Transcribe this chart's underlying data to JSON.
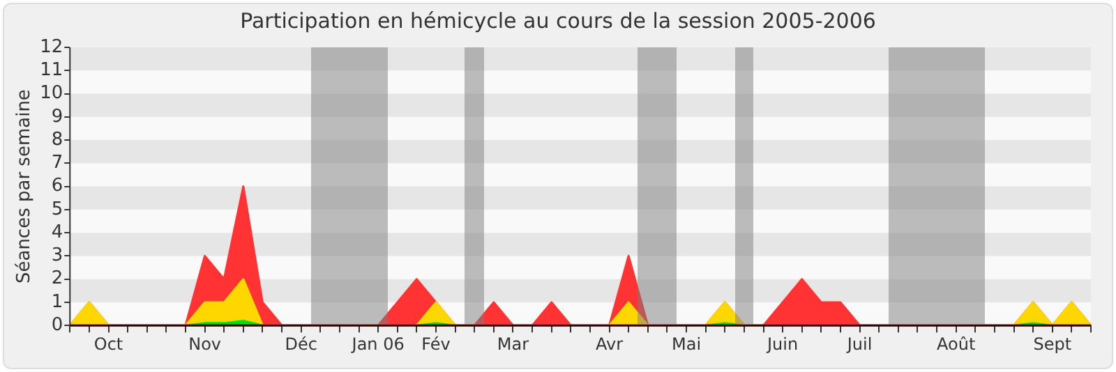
{
  "chart_data": {
    "type": "area",
    "title": "Participation en hémicycle au cours de la session 2005-2006",
    "ylabel": "Séances par semaine",
    "categories": [
      null,
      null,
      "Oct",
      null,
      null,
      null,
      null,
      "Nov",
      null,
      null,
      null,
      null,
      "Déc",
      null,
      null,
      null,
      "Jan 06",
      null,
      null,
      "Fév",
      null,
      null,
      null,
      "Mar",
      null,
      null,
      null,
      null,
      "Avr",
      null,
      null,
      null,
      "Mai",
      null,
      null,
      null,
      null,
      "Juin",
      null,
      null,
      null,
      "Juil",
      null,
      null,
      null,
      null,
      "Août",
      null,
      null,
      null,
      null,
      "Sept",
      null,
      null
    ],
    "ylim": [
      0,
      12
    ],
    "yticks": [
      0,
      1,
      2,
      3,
      4,
      5,
      6,
      7,
      8,
      9,
      10,
      11,
      12
    ],
    "legend": false,
    "series": [
      {
        "color": "#ff3333",
        "values": [
          0,
          1,
          0,
          0,
          0,
          0,
          0,
          3,
          2,
          6,
          1,
          0,
          0,
          0,
          0,
          0,
          0,
          1,
          2,
          1,
          0,
          0,
          1,
          0,
          0,
          1,
          0,
          0,
          0,
          3,
          0,
          0,
          0,
          0,
          1,
          0,
          0,
          1,
          2,
          1,
          1,
          0,
          0,
          0,
          0,
          0,
          0,
          0,
          0,
          0,
          1,
          0,
          1,
          0
        ]
      },
      {
        "color": "#ffd700",
        "values": [
          0,
          1,
          0,
          0,
          0,
          0,
          0,
          1,
          1,
          2,
          0,
          0,
          0,
          0,
          0,
          0,
          0,
          0,
          0,
          1,
          0,
          0,
          0,
          0,
          0,
          0,
          0,
          0,
          0,
          1,
          0,
          0,
          0,
          0,
          1,
          0,
          0,
          0,
          0,
          0,
          0,
          0,
          0,
          0,
          0,
          0,
          0,
          0,
          0,
          0,
          1,
          0,
          1,
          0
        ]
      },
      {
        "color": "#00e000",
        "values": [
          0,
          0,
          0,
          0,
          0,
          0,
          0,
          0.1,
          0.1,
          0.2,
          0,
          0,
          0,
          0,
          0,
          0,
          0,
          0,
          0,
          0.1,
          0,
          0,
          0,
          0,
          0,
          0,
          0,
          0,
          0,
          0,
          0,
          0,
          0,
          0,
          0.1,
          0,
          0,
          0,
          0,
          0,
          0,
          0,
          0,
          0,
          0,
          0,
          0,
          0,
          0,
          0,
          0.1,
          0,
          0,
          0
        ]
      }
    ]
  }
}
